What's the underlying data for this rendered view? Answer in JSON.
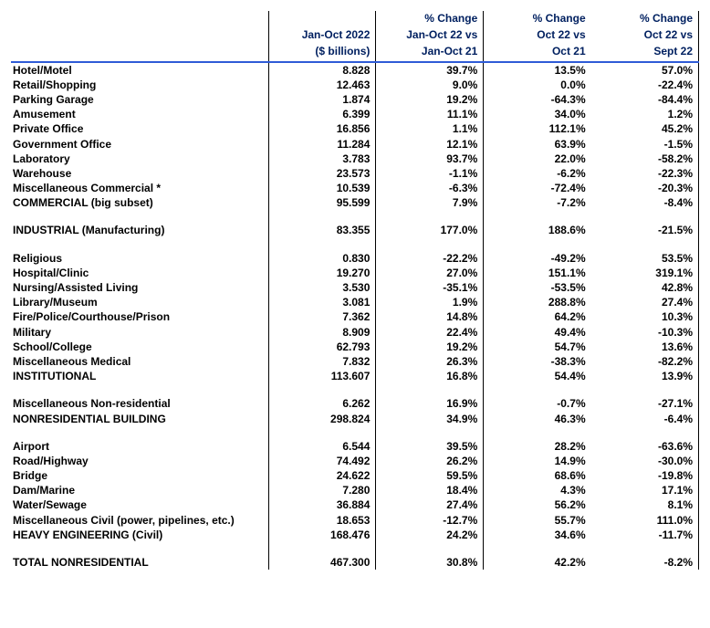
{
  "header": {
    "col1": [
      "",
      "Jan-Oct 2022",
      "($ billions)"
    ],
    "col2": [
      "% Change",
      "Jan-Oct 22 vs",
      "Jan-Oct 21"
    ],
    "col3": [
      "% Change",
      "Oct 22 vs",
      "Oct 21"
    ],
    "col4": [
      "% Change",
      "Oct 22 vs",
      "Sept 22"
    ]
  },
  "rows": [
    {
      "label": "Hotel/Motel",
      "c1": "8.828",
      "c2": "39.7%",
      "c3": "13.5%",
      "c4": "57.0%"
    },
    {
      "label": "Retail/Shopping",
      "c1": "12.463",
      "c2": "9.0%",
      "c3": "0.0%",
      "c4": "-22.4%"
    },
    {
      "label": "Parking Garage",
      "c1": "1.874",
      "c2": "19.2%",
      "c3": "-64.3%",
      "c4": "-84.4%"
    },
    {
      "label": "Amusement",
      "c1": "6.399",
      "c2": "11.1%",
      "c3": "34.0%",
      "c4": "1.2%"
    },
    {
      "label": "Private Office",
      "c1": "16.856",
      "c2": "1.1%",
      "c3": "112.1%",
      "c4": "45.2%"
    },
    {
      "label": "Government Office",
      "c1": "11.284",
      "c2": "12.1%",
      "c3": "63.9%",
      "c4": "-1.5%"
    },
    {
      "label": "Laboratory",
      "c1": "3.783",
      "c2": "93.7%",
      "c3": "22.0%",
      "c4": "-58.2%"
    },
    {
      "label": "Warehouse",
      "c1": "23.573",
      "c2": "-1.1%",
      "c3": "-6.2%",
      "c4": "-22.3%"
    },
    {
      "label": "Miscellaneous Commercial *",
      "c1": "10.539",
      "c2": "-6.3%",
      "c3": "-72.4%",
      "c4": "-20.3%"
    },
    {
      "label": "COMMERCIAL (big subset)",
      "c1": "95.599",
      "c2": "7.9%",
      "c3": "-7.2%",
      "c4": "-8.4%"
    },
    {
      "spacer": true
    },
    {
      "label": "INDUSTRIAL (Manufacturing)",
      "c1": "83.355",
      "c2": "177.0%",
      "c3": "188.6%",
      "c4": "-21.5%"
    },
    {
      "spacer": true
    },
    {
      "label": "Religious",
      "c1": "0.830",
      "c2": "-22.2%",
      "c3": "-49.2%",
      "c4": "53.5%"
    },
    {
      "label": "Hospital/Clinic",
      "c1": "19.270",
      "c2": "27.0%",
      "c3": "151.1%",
      "c4": "319.1%"
    },
    {
      "label": "Nursing/Assisted Living",
      "c1": "3.530",
      "c2": "-35.1%",
      "c3": "-53.5%",
      "c4": "42.8%"
    },
    {
      "label": "Library/Museum",
      "c1": "3.081",
      "c2": "1.9%",
      "c3": "288.8%",
      "c4": "27.4%"
    },
    {
      "label": "Fire/Police/Courthouse/Prison",
      "c1": "7.362",
      "c2": "14.8%",
      "c3": "64.2%",
      "c4": "10.3%"
    },
    {
      "label": "Military",
      "c1": "8.909",
      "c2": "22.4%",
      "c3": "49.4%",
      "c4": "-10.3%"
    },
    {
      "label": "School/College",
      "c1": "62.793",
      "c2": "19.2%",
      "c3": "54.7%",
      "c4": "13.6%"
    },
    {
      "label": "Miscellaneous Medical",
      "c1": "7.832",
      "c2": "26.3%",
      "c3": "-38.3%",
      "c4": "-82.2%"
    },
    {
      "label": "INSTITUTIONAL",
      "c1": "113.607",
      "c2": "16.8%",
      "c3": "54.4%",
      "c4": "13.9%"
    },
    {
      "spacer": true
    },
    {
      "label": "Miscellaneous Non-residential",
      "c1": "6.262",
      "c2": "16.9%",
      "c3": "-0.7%",
      "c4": "-27.1%"
    },
    {
      "label": "NONRESIDENTIAL BUILDING",
      "c1": "298.824",
      "c2": "34.9%",
      "c3": "46.3%",
      "c4": "-6.4%"
    },
    {
      "spacer": true
    },
    {
      "label": "Airport",
      "c1": "6.544",
      "c2": "39.5%",
      "c3": "28.2%",
      "c4": "-63.6%"
    },
    {
      "label": "Road/Highway",
      "c1": "74.492",
      "c2": "26.2%",
      "c3": "14.9%",
      "c4": "-30.0%"
    },
    {
      "label": "Bridge",
      "c1": "24.622",
      "c2": "59.5%",
      "c3": "68.6%",
      "c4": "-19.8%"
    },
    {
      "label": "Dam/Marine",
      "c1": "7.280",
      "c2": "18.4%",
      "c3": "4.3%",
      "c4": "17.1%"
    },
    {
      "label": "Water/Sewage",
      "c1": "36.884",
      "c2": "27.4%",
      "c3": "56.2%",
      "c4": "8.1%"
    },
    {
      "label": "Miscellaneous Civil (power, pipelines, etc.)",
      "c1": "18.653",
      "c2": "-12.7%",
      "c3": "55.7%",
      "c4": "111.0%"
    },
    {
      "label": "HEAVY ENGINEERING (Civil)",
      "c1": "168.476",
      "c2": "24.2%",
      "c3": "34.6%",
      "c4": "-11.7%"
    },
    {
      "spacer": true
    },
    {
      "label": "TOTAL NONRESIDENTIAL",
      "c1": "467.300",
      "c2": "30.8%",
      "c3": "42.2%",
      "c4": "-8.2%"
    }
  ]
}
